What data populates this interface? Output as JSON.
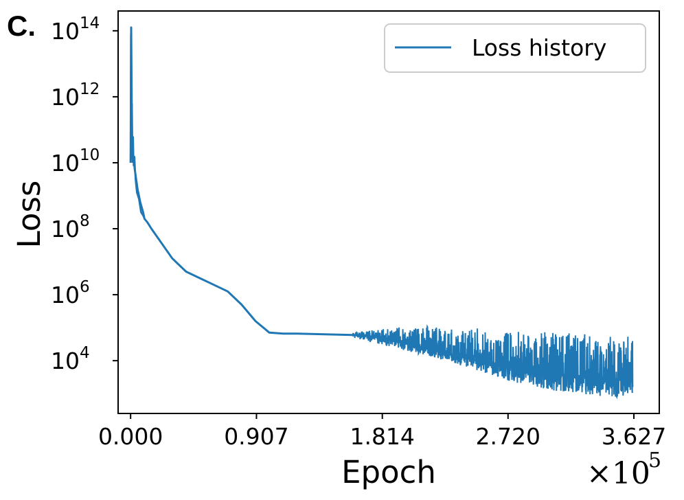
{
  "panel_label": "C.",
  "chart_data": {
    "type": "line",
    "xlabel": "Epoch",
    "ylabel": "Loss",
    "x_multiplier": {
      "base": "×10",
      "exponent": "5"
    },
    "x_ticks": [
      "0.000",
      "0.907",
      "1.814",
      "2.720",
      "3.627"
    ],
    "x_tick_values": [
      0,
      0.907,
      1.814,
      2.72,
      3.627
    ],
    "xlim": [
      -0.09,
      3.81
    ],
    "y_scale": "log",
    "y_ticks": [
      {
        "base": "10",
        "exp": "4",
        "value": 4
      },
      {
        "base": "10",
        "exp": "6",
        "value": 6
      },
      {
        "base": "10",
        "exp": "8",
        "value": 8
      },
      {
        "base": "10",
        "exp": "10",
        "value": 10
      },
      {
        "base": "10",
        "exp": "12",
        "value": 12
      },
      {
        "base": "10",
        "exp": "14",
        "value": 14
      }
    ],
    "ylim_log10": [
      2.4,
      14.6
    ],
    "grid": false,
    "legend_position": "top-right",
    "series": [
      {
        "name": "Loss history",
        "color": "#1f77b4",
        "x_e5": [
          0.0,
          0.004,
          0.01,
          0.02,
          0.03,
          0.05,
          0.07,
          0.09,
          0.1,
          0.12,
          0.15,
          0.2,
          0.3,
          0.4,
          0.5,
          0.6,
          0.7,
          0.8,
          0.9,
          1.0,
          1.1,
          1.2,
          1.3,
          1.4,
          1.5,
          1.6,
          1.7,
          1.8,
          2.0,
          2.2,
          2.4,
          2.6,
          2.8,
          3.0,
          3.2,
          3.4,
          3.6,
          3.62
        ],
        "log10_loss": [
          10.0,
          14.1,
          10.6,
          10.2,
          9.8,
          9.2,
          8.8,
          8.5,
          8.3,
          8.2,
          8.0,
          7.7,
          7.1,
          6.7,
          6.5,
          6.3,
          6.1,
          5.7,
          5.2,
          4.85,
          4.82,
          4.82,
          4.81,
          4.8,
          4.79,
          4.78,
          4.75,
          4.7,
          4.5,
          4.3,
          4.1,
          3.9,
          3.75,
          3.6,
          3.55,
          3.45,
          3.4,
          3.4
        ],
        "noise_start_e5": 1.6,
        "noise_high_log10": [
          4.85,
          5.0,
          5.05,
          5.0,
          4.95,
          4.9,
          4.85,
          4.75
        ],
        "noise_low_log10": [
          4.7,
          4.4,
          4.1,
          3.75,
          3.35,
          3.1,
          2.95,
          2.85
        ]
      }
    ]
  }
}
